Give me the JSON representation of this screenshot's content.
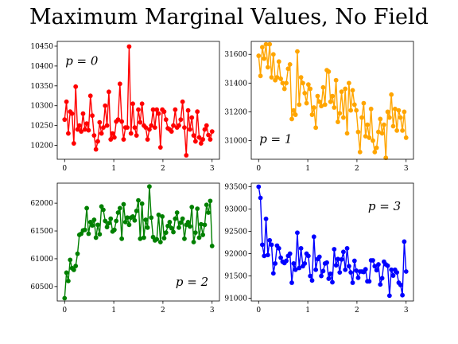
{
  "title": "Maximum Marginal Values, No Field",
  "chart_data": [
    {
      "type": "line",
      "annotation": "p = 0",
      "color": "#ff0000",
      "xlim": [
        -0.15,
        3.15
      ],
      "ylim": [
        10165,
        10462
      ],
      "xticks": [
        0,
        1,
        2,
        3
      ],
      "yticks": [
        10200,
        10250,
        10300,
        10350,
        10400,
        10450
      ],
      "x": [
        0.0,
        0.0375,
        0.075,
        0.1125,
        0.15,
        0.1875,
        0.225,
        0.2625,
        0.3,
        0.3375,
        0.375,
        0.4125,
        0.45,
        0.4875,
        0.525,
        0.5625,
        0.6,
        0.6375,
        0.675,
        0.7125,
        0.75,
        0.7875,
        0.825,
        0.8625,
        0.9,
        0.9375,
        0.975,
        1.0125,
        1.05,
        1.0875,
        1.125,
        1.1625,
        1.2,
        1.2375,
        1.275,
        1.3125,
        1.35,
        1.3875,
        1.425,
        1.4625,
        1.5,
        1.5375,
        1.575,
        1.6125,
        1.65,
        1.6875,
        1.725,
        1.7625,
        1.8,
        1.8375,
        1.875,
        1.9125,
        1.95,
        1.9875,
        2.025,
        2.0625,
        2.1,
        2.1375,
        2.175,
        2.2125,
        2.25,
        2.2875,
        2.325,
        2.3625,
        2.4,
        2.4375,
        2.475,
        2.5125,
        2.55,
        2.5875,
        2.625,
        2.6625,
        2.7,
        2.7375,
        2.775,
        2.8125,
        2.85,
        2.8875,
        2.925,
        2.9625,
        3.0
      ],
      "y": [
        10265,
        10310,
        10230,
        10285,
        10280,
        10205,
        10348,
        10240,
        10250,
        10235,
        10280,
        10240,
        10255,
        10238,
        10325,
        10275,
        10225,
        10190,
        10210,
        10258,
        10230,
        10245,
        10300,
        10250,
        10335,
        10215,
        10230,
        10220,
        10260,
        10265,
        10355,
        10260,
        10215,
        10245,
        10245,
        10449,
        10230,
        10305,
        10245,
        10225,
        10290,
        10258,
        10305,
        10250,
        10245,
        10215,
        10240,
        10250,
        10290,
        10245,
        10290,
        10280,
        10195,
        10290,
        10285,
        10265,
        10243,
        10240,
        10235,
        10250,
        10290,
        10245,
        10250,
        10265,
        10310,
        10245,
        10175,
        10288,
        10240,
        10270,
        10225,
        10210,
        10285,
        10220,
        10205,
        10215,
        10240,
        10250,
        10226,
        10215,
        10235
      ]
    },
    {
      "type": "line",
      "annotation": "p = 1",
      "color": "#ffa500",
      "xlim": [
        -0.15,
        3.15
      ],
      "ylim": [
        30870,
        31690
      ],
      "xticks": [
        0,
        1,
        2,
        3
      ],
      "yticks": [
        31000,
        31200,
        31400,
        31600
      ],
      "x": [
        0.0,
        0.0375,
        0.075,
        0.1125,
        0.15,
        0.1875,
        0.225,
        0.2625,
        0.3,
        0.3375,
        0.375,
        0.4125,
        0.45,
        0.4875,
        0.525,
        0.5625,
        0.6,
        0.6375,
        0.675,
        0.7125,
        0.75,
        0.7875,
        0.825,
        0.8625,
        0.9,
        0.9375,
        0.975,
        1.0125,
        1.05,
        1.0875,
        1.125,
        1.1625,
        1.2,
        1.2375,
        1.275,
        1.3125,
        1.35,
        1.3875,
        1.425,
        1.4625,
        1.5,
        1.5375,
        1.575,
        1.6125,
        1.65,
        1.6875,
        1.725,
        1.7625,
        1.8,
        1.8375,
        1.875,
        1.9125,
        1.95,
        1.9875,
        2.025,
        2.0625,
        2.1,
        2.1375,
        2.175,
        2.2125,
        2.25,
        2.2875,
        2.325,
        2.3625,
        2.4,
        2.4375,
        2.475,
        2.5125,
        2.55,
        2.5875,
        2.625,
        2.6625,
        2.7,
        2.7375,
        2.775,
        2.8125,
        2.85,
        2.8875,
        2.925,
        2.9625,
        3.0
      ],
      "y": [
        31590,
        31450,
        31650,
        31570,
        31670,
        31510,
        31670,
        31440,
        31600,
        31420,
        31440,
        31550,
        31430,
        31400,
        31360,
        31400,
        31500,
        31530,
        31150,
        31210,
        31180,
        31620,
        31250,
        31440,
        31400,
        31330,
        31260,
        31390,
        31360,
        31180,
        31230,
        31090,
        31310,
        31270,
        31240,
        31370,
        31250,
        31490,
        31480,
        31270,
        31310,
        31230,
        31420,
        31130,
        31190,
        31340,
        31160,
        31360,
        31050,
        31400,
        31210,
        31350,
        31250,
        31210,
        31060,
        30920,
        31160,
        31260,
        31030,
        31110,
        31020,
        31220,
        31000,
        30920,
        30950,
        31060,
        31150,
        31050,
        31110,
        30880,
        31200,
        31160,
        31320,
        31100,
        31220,
        31070,
        31210,
        31160,
        31070,
        31200,
        31020
      ]
    },
    {
      "type": "line",
      "annotation": "p = 2",
      "color": "#008000",
      "xlim": [
        -0.15,
        3.15
      ],
      "ylim": [
        60240,
        62360
      ],
      "xticks": [
        0,
        1,
        2,
        3
      ],
      "yticks": [
        60500,
        61000,
        61500,
        62000
      ],
      "x": [
        0.0,
        0.0375,
        0.075,
        0.1125,
        0.15,
        0.1875,
        0.225,
        0.2625,
        0.3,
        0.3375,
        0.375,
        0.4125,
        0.45,
        0.4875,
        0.525,
        0.5625,
        0.6,
        0.6375,
        0.675,
        0.7125,
        0.75,
        0.7875,
        0.825,
        0.8625,
        0.9,
        0.9375,
        0.975,
        1.0125,
        1.05,
        1.0875,
        1.125,
        1.1625,
        1.2,
        1.2375,
        1.275,
        1.3125,
        1.35,
        1.3875,
        1.425,
        1.4625,
        1.5,
        1.5375,
        1.575,
        1.6125,
        1.65,
        1.6875,
        1.725,
        1.7625,
        1.8,
        1.8375,
        1.875,
        1.9125,
        1.95,
        1.9875,
        2.025,
        2.0625,
        2.1,
        2.1375,
        2.175,
        2.2125,
        2.25,
        2.2875,
        2.325,
        2.3625,
        2.4,
        2.4375,
        2.475,
        2.5125,
        2.55,
        2.5875,
        2.625,
        2.6625,
        2.7,
        2.7375,
        2.775,
        2.8125,
        2.85,
        2.8875,
        2.925,
        2.9625,
        3.0
      ],
      "y": [
        60290,
        60750,
        60600,
        60980,
        60830,
        60800,
        60870,
        61090,
        61430,
        61450,
        61510,
        61520,
        61910,
        61450,
        61660,
        61600,
        61700,
        61380,
        61610,
        61440,
        61940,
        61880,
        61680,
        61570,
        61640,
        61720,
        61490,
        61520,
        61680,
        61830,
        61910,
        61360,
        61980,
        61660,
        61740,
        61610,
        61740,
        61760,
        61690,
        61860,
        62050,
        61360,
        61990,
        61380,
        61700,
        61560,
        62300,
        61740,
        61390,
        61330,
        61350,
        61790,
        61300,
        61760,
        61370,
        61470,
        61590,
        61660,
        61550,
        61480,
        61720,
        61830,
        61560,
        61650,
        61720,
        61360,
        61610,
        61660,
        61580,
        61930,
        61300,
        61470,
        61900,
        61380,
        61620,
        61430,
        61610,
        61970,
        61830,
        62040,
        61230
      ]
    },
    {
      "type": "line",
      "annotation": "p = 3",
      "color": "#0000ff",
      "xlim": [
        -0.15,
        3.15
      ],
      "ylim": [
        90940,
        93580
      ],
      "xticks": [
        0,
        1,
        2,
        3
      ],
      "yticks": [
        91000,
        91500,
        92000,
        92500,
        93000,
        93500
      ],
      "x": [
        0.0,
        0.0375,
        0.075,
        0.1125,
        0.15,
        0.1875,
        0.225,
        0.2625,
        0.3,
        0.3375,
        0.375,
        0.4125,
        0.45,
        0.4875,
        0.525,
        0.5625,
        0.6,
        0.6375,
        0.675,
        0.7125,
        0.75,
        0.7875,
        0.825,
        0.8625,
        0.9,
        0.9375,
        0.975,
        1.0125,
        1.05,
        1.0875,
        1.125,
        1.1625,
        1.2,
        1.2375,
        1.275,
        1.3125,
        1.35,
        1.3875,
        1.425,
        1.4625,
        1.5,
        1.5375,
        1.575,
        1.6125,
        1.65,
        1.6875,
        1.725,
        1.7625,
        1.8,
        1.8375,
        1.875,
        1.9125,
        1.95,
        1.9875,
        2.025,
        2.0625,
        2.1,
        2.1375,
        2.175,
        2.2125,
        2.25,
        2.2875,
        2.325,
        2.3625,
        2.4,
        2.4375,
        2.475,
        2.5125,
        2.55,
        2.5875,
        2.625,
        2.6625,
        2.7,
        2.7375,
        2.775,
        2.8125,
        2.85,
        2.8875,
        2.925,
        2.9625,
        3.0
      ],
      "y": [
        93500,
        93250,
        92200,
        91950,
        92780,
        91970,
        92300,
        92200,
        91560,
        91780,
        92180,
        92120,
        91910,
        91820,
        91790,
        91840,
        91950,
        92000,
        91350,
        91780,
        91640,
        92470,
        91680,
        92120,
        91720,
        91780,
        92000,
        91950,
        91500,
        91400,
        92380,
        91640,
        91880,
        91930,
        91500,
        91610,
        91780,
        91800,
        91440,
        91550,
        91360,
        92100,
        91740,
        91880,
        91580,
        91870,
        92040,
        91640,
        92120,
        91720,
        91580,
        91350,
        91840,
        91620,
        91460,
        91600,
        91600,
        91590,
        91650,
        91380,
        91380,
        91850,
        91850,
        91720,
        91630,
        91760,
        91310,
        91450,
        91820,
        91760,
        91730,
        91060,
        91640,
        91510,
        91640,
        91580,
        91350,
        91300,
        91070,
        92270,
        91600
      ]
    }
  ]
}
